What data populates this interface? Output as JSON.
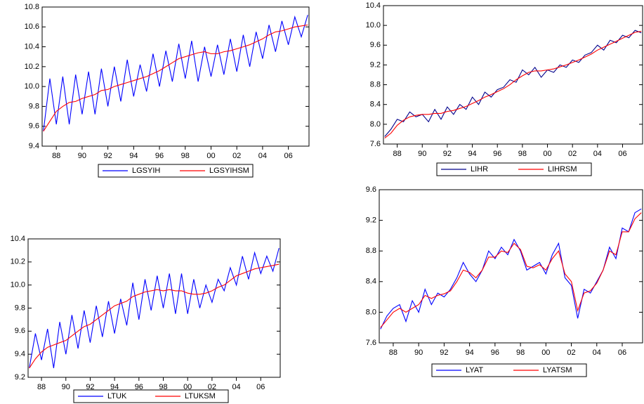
{
  "chart_data": [
    {
      "type": "line",
      "x": [
        1987,
        1987.5,
        1988,
        1988.5,
        1989,
        1989.5,
        1990,
        1990.5,
        1991,
        1991.5,
        1992,
        1992.5,
        1993,
        1993.5,
        1994,
        1994.5,
        1995,
        1995.5,
        1996,
        1996.5,
        1997,
        1997.5,
        1998,
        1998.5,
        1999,
        1999.5,
        2000,
        2000.5,
        2001,
        2001.5,
        2002,
        2002.5,
        2003,
        2003.5,
        2004,
        2004.5,
        2005,
        2005.5,
        2006,
        2006.5,
        2007,
        2007.5
      ],
      "series": [
        {
          "name": "LGSYIH",
          "color": "#0000ff",
          "values": [
            9.55,
            10.08,
            9.62,
            10.1,
            9.62,
            10.12,
            9.72,
            10.15,
            9.72,
            10.18,
            9.8,
            10.2,
            9.85,
            10.27,
            9.9,
            10.22,
            9.95,
            10.33,
            10.0,
            10.36,
            10.05,
            10.43,
            10.08,
            10.46,
            10.05,
            10.4,
            10.1,
            10.42,
            10.12,
            10.48,
            10.15,
            10.52,
            10.2,
            10.55,
            10.28,
            10.62,
            10.35,
            10.66,
            10.42,
            10.7,
            10.5,
            10.72
          ]
        },
        {
          "name": "LGSYIHSM",
          "color": "#ff0000",
          "values": [
            9.55,
            9.65,
            9.75,
            9.8,
            9.84,
            9.85,
            9.88,
            9.9,
            9.92,
            9.96,
            9.97,
            10.0,
            10.02,
            10.04,
            10.06,
            10.08,
            10.1,
            10.13,
            10.16,
            10.2,
            10.24,
            10.28,
            10.3,
            10.32,
            10.34,
            10.35,
            10.33,
            10.33,
            10.35,
            10.36,
            10.38,
            10.4,
            10.42,
            10.45,
            10.48,
            10.52,
            10.55,
            10.56,
            10.58,
            10.6,
            10.61,
            10.62
          ]
        }
      ],
      "xlim": [
        1986.9,
        2007.6
      ],
      "xticks": [
        {
          "value": 1988,
          "label": "88"
        },
        {
          "value": 1990,
          "label": "90"
        },
        {
          "value": 1992,
          "label": "92"
        },
        {
          "value": 1994,
          "label": "94"
        },
        {
          "value": 1996,
          "label": "96"
        },
        {
          "value": 1998,
          "label": "98"
        },
        {
          "value": 2000,
          "label": "00"
        },
        {
          "value": 2002,
          "label": "02"
        },
        {
          "value": 2004,
          "label": "04"
        },
        {
          "value": 2006,
          "label": "06"
        }
      ],
      "ylim": [
        9.4,
        10.8
      ],
      "yticks": [
        9.4,
        9.6,
        9.8,
        {
          "value": 10,
          "label": "10.0"
        },
        10.2,
        10.4,
        10.6,
        10.8
      ]
    },
    {
      "type": "line",
      "x": [
        1987,
        1987.5,
        1988,
        1988.5,
        1989,
        1989.5,
        1990,
        1990.5,
        1991,
        1991.5,
        1992,
        1992.5,
        1993,
        1993.5,
        1994,
        1994.5,
        1995,
        1995.5,
        1996,
        1996.5,
        1997,
        1997.5,
        1998,
        1998.5,
        1999,
        1999.5,
        2000,
        2000.5,
        2001,
        2001.5,
        2002,
        2002.5,
        2003,
        2003.5,
        2004,
        2004.5,
        2005,
        2005.5,
        2006,
        2006.5,
        2007,
        2007.5
      ],
      "series": [
        {
          "name": "LIHR",
          "color": "#00008b",
          "values": [
            7.75,
            7.9,
            8.1,
            8.05,
            8.25,
            8.15,
            8.2,
            8.05,
            8.3,
            8.1,
            8.35,
            8.2,
            8.4,
            8.3,
            8.55,
            8.4,
            8.65,
            8.55,
            8.7,
            8.75,
            8.9,
            8.85,
            9.1,
            9.0,
            9.15,
            8.95,
            9.1,
            9.05,
            9.2,
            9.15,
            9.3,
            9.25,
            9.4,
            9.45,
            9.6,
            9.5,
            9.7,
            9.65,
            9.8,
            9.75,
            9.9,
            9.85
          ]
        },
        {
          "name": "LIHRSM",
          "color": "#ff0000",
          "values": [
            7.72,
            7.82,
            7.98,
            8.08,
            8.15,
            8.18,
            8.2,
            8.2,
            8.22,
            8.22,
            8.26,
            8.28,
            8.32,
            8.36,
            8.42,
            8.48,
            8.55,
            8.6,
            8.66,
            8.72,
            8.8,
            8.9,
            8.98,
            9.05,
            9.08,
            9.08,
            9.1,
            9.12,
            9.16,
            9.2,
            9.25,
            9.3,
            9.36,
            9.42,
            9.5,
            9.56,
            9.62,
            9.68,
            9.74,
            9.8,
            9.86,
            9.88
          ]
        }
      ],
      "xlim": [
        1986.9,
        2007.6
      ],
      "xticks": [
        {
          "value": 1988,
          "label": "88"
        },
        {
          "value": 1990,
          "label": "90"
        },
        {
          "value": 1992,
          "label": "92"
        },
        {
          "value": 1994,
          "label": "94"
        },
        {
          "value": 1996,
          "label": "96"
        },
        {
          "value": 1998,
          "label": "98"
        },
        {
          "value": 2000,
          "label": "00"
        },
        {
          "value": 2002,
          "label": "02"
        },
        {
          "value": 2004,
          "label": "04"
        },
        {
          "value": 2006,
          "label": "06"
        }
      ],
      "ylim": [
        7.6,
        10.4
      ],
      "yticks": [
        7.6,
        {
          "value": 8,
          "label": "8.0"
        },
        8.4,
        8.8,
        9.2,
        9.6,
        {
          "value": 10,
          "label": "10.0"
        },
        10.4
      ]
    },
    {
      "type": "line",
      "x": [
        1987,
        1987.5,
        1988,
        1988.5,
        1989,
        1989.5,
        1990,
        1990.5,
        1991,
        1991.5,
        1992,
        1992.5,
        1993,
        1993.5,
        1994,
        1994.5,
        1995,
        1995.5,
        1996,
        1996.5,
        1997,
        1997.5,
        1998,
        1998.5,
        1999,
        1999.5,
        2000,
        2000.5,
        2001,
        2001.5,
        2002,
        2002.5,
        2003,
        2003.5,
        2004,
        2004.5,
        2005,
        2005.5,
        2006,
        2006.5,
        2007,
        2007.5
      ],
      "series": [
        {
          "name": "LTUK",
          "color": "#0000ff",
          "values": [
            9.28,
            9.58,
            9.35,
            9.62,
            9.28,
            9.68,
            9.4,
            9.74,
            9.45,
            9.78,
            9.5,
            9.82,
            9.55,
            9.86,
            9.58,
            9.88,
            9.65,
            10.02,
            9.7,
            10.05,
            9.78,
            10.08,
            9.8,
            10.1,
            9.75,
            10.1,
            9.75,
            10.05,
            9.8,
            10.0,
            9.85,
            10.05,
            9.95,
            10.15,
            10.0,
            10.25,
            10.05,
            10.28,
            10.1,
            10.25,
            10.12,
            10.32
          ]
        },
        {
          "name": "LTUKSM",
          "color": "#ff0000",
          "values": [
            9.28,
            9.36,
            9.42,
            9.46,
            9.48,
            9.5,
            9.52,
            9.56,
            9.6,
            9.64,
            9.66,
            9.7,
            9.74,
            9.78,
            9.82,
            9.84,
            9.86,
            9.9,
            9.92,
            9.94,
            9.95,
            9.96,
            9.95,
            9.96,
            9.95,
            9.95,
            9.93,
            9.92,
            9.92,
            9.93,
            9.95,
            9.98,
            10.0,
            10.04,
            10.08,
            10.1,
            10.12,
            10.14,
            10.15,
            10.16,
            10.17,
            10.18
          ]
        }
      ],
      "xlim": [
        1986.9,
        2007.6
      ],
      "xticks": [
        {
          "value": 1988,
          "label": "88"
        },
        {
          "value": 1990,
          "label": "90"
        },
        {
          "value": 1992,
          "label": "92"
        },
        {
          "value": 1994,
          "label": "94"
        },
        {
          "value": 1996,
          "label": "96"
        },
        {
          "value": 1998,
          "label": "98"
        },
        {
          "value": 2000,
          "label": "00"
        },
        {
          "value": 2002,
          "label": "02"
        },
        {
          "value": 2004,
          "label": "04"
        },
        {
          "value": 2006,
          "label": "06"
        }
      ],
      "ylim": [
        9.2,
        10.4
      ],
      "yticks": [
        9.2,
        9.4,
        9.6,
        9.8,
        {
          "value": 10,
          "label": "10.0"
        },
        10.2,
        10.4
      ]
    },
    {
      "type": "line",
      "x": [
        1987,
        1987.5,
        1988,
        1988.5,
        1989,
        1989.5,
        1990,
        1990.5,
        1991,
        1991.5,
        1992,
        1992.5,
        1993,
        1993.5,
        1994,
        1994.5,
        1995,
        1995.5,
        1996,
        1996.5,
        1997,
        1997.5,
        1998,
        1998.5,
        1999,
        1999.5,
        2000,
        2000.5,
        2001,
        2001.5,
        2002,
        2002.5,
        2003,
        2003.5,
        2004,
        2004.5,
        2005,
        2005.5,
        2006,
        2006.5,
        2007,
        2007.5
      ],
      "series": [
        {
          "name": "LYAT",
          "color": "#0000ff",
          "values": [
            7.78,
            7.95,
            8.05,
            8.1,
            7.88,
            8.15,
            8.0,
            8.3,
            8.1,
            8.25,
            8.2,
            8.3,
            8.45,
            8.65,
            8.5,
            8.4,
            8.55,
            8.8,
            8.7,
            8.85,
            8.75,
            8.95,
            8.8,
            8.55,
            8.6,
            8.65,
            8.5,
            8.75,
            8.9,
            8.45,
            8.35,
            7.92,
            8.3,
            8.25,
            8.4,
            8.55,
            8.85,
            8.7,
            9.1,
            9.05,
            9.3,
            9.35
          ]
        },
        {
          "name": "LYATSM",
          "color": "#ff0000",
          "values": [
            7.8,
            7.9,
            8.0,
            8.05,
            8.0,
            8.05,
            8.1,
            8.22,
            8.18,
            8.22,
            8.24,
            8.28,
            8.4,
            8.55,
            8.52,
            8.45,
            8.55,
            8.72,
            8.72,
            8.8,
            8.78,
            8.9,
            8.82,
            8.6,
            8.58,
            8.62,
            8.55,
            8.7,
            8.8,
            8.5,
            8.4,
            8.02,
            8.25,
            8.28,
            8.38,
            8.55,
            8.8,
            8.75,
            9.05,
            9.05,
            9.22,
            9.3
          ]
        }
      ],
      "xlim": [
        1986.9,
        2007.6
      ],
      "xticks": [
        {
          "value": 1988,
          "label": "88"
        },
        {
          "value": 1990,
          "label": "90"
        },
        {
          "value": 1992,
          "label": "92"
        },
        {
          "value": 1994,
          "label": "94"
        },
        {
          "value": 1996,
          "label": "96"
        },
        {
          "value": 1998,
          "label": "98"
        },
        {
          "value": 2000,
          "label": "00"
        },
        {
          "value": 2002,
          "label": "02"
        },
        {
          "value": 2004,
          "label": "04"
        },
        {
          "value": 2006,
          "label": "06"
        }
      ],
      "ylim": [
        7.6,
        9.6
      ],
      "yticks": [
        7.6,
        {
          "value": 8,
          "label": "8.0"
        },
        8.4,
        8.8,
        9.2,
        9.6
      ]
    }
  ]
}
